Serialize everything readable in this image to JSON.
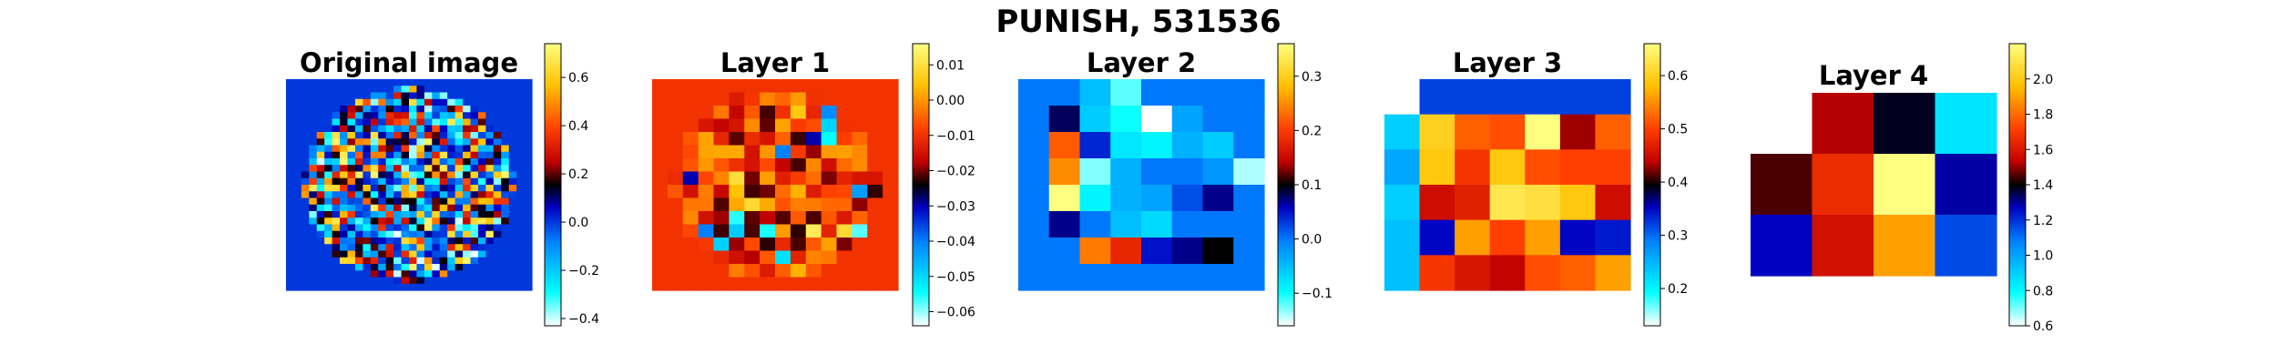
{
  "figure": {
    "title": "PUNISH, 531536"
  },
  "colormap": {
    "name": "flag-like (cyan-blue-black-red-yellow-white)",
    "stops": [
      [
        0.0,
        "#ffffff"
      ],
      [
        0.12,
        "#00ffff"
      ],
      [
        0.3,
        "#0080ff"
      ],
      [
        0.42,
        "#0000c0"
      ],
      [
        0.5,
        "#000000"
      ],
      [
        0.58,
        "#c00000"
      ],
      [
        0.7,
        "#ff4000"
      ],
      [
        0.85,
        "#ffc000"
      ],
      [
        1.0,
        "#ffff80"
      ]
    ]
  },
  "chart_data": [
    {
      "type": "heatmap",
      "title": "Original image",
      "grid": [
        32,
        32
      ],
      "mask": "circle",
      "vmin": -0.43,
      "vmax": 0.74,
      "background_value": 0.0,
      "colorbar_ticks": [
        -0.4,
        -0.2,
        0.0,
        0.2,
        0.4,
        0.6
      ],
      "colorbar_labels": [
        "−0.4",
        "−0.2",
        "0.0",
        "0.2",
        "0.4",
        "0.6"
      ],
      "seed": 11,
      "noise_low": -0.42,
      "noise_high": 0.72,
      "noise_bias": 0.35
    },
    {
      "type": "heatmap",
      "title": "Layer 1",
      "grid": [
        16,
        16
      ],
      "mask": "circle",
      "vmin": -0.064,
      "vmax": 0.016,
      "background_value": -0.01,
      "colorbar_ticks": [
        -0.06,
        -0.05,
        -0.04,
        -0.03,
        -0.02,
        -0.01,
        0.0,
        0.01
      ],
      "colorbar_labels": [
        "−0.06",
        "−0.05",
        "−0.04",
        "−0.03",
        "−0.02",
        "−0.01",
        "0.00",
        "0.01"
      ],
      "seed": 23,
      "noise_low": -0.06,
      "noise_high": 0.013,
      "noise_bias": 0.72
    },
    {
      "type": "heatmap",
      "title": "Layer 2",
      "grid": [
        8,
        8
      ],
      "mask": "circle",
      "vmin": -0.16,
      "vmax": 0.36,
      "background_value": 0.0,
      "colorbar_ticks": [
        -0.1,
        0.0,
        0.1,
        0.2,
        0.3
      ],
      "colorbar_labels": [
        "−0.1",
        "0.0",
        "0.1",
        "0.2",
        "0.3"
      ],
      "values": [
        [
          0.0,
          0.0,
          -0.05,
          -0.12,
          0.0,
          0.0,
          0.0,
          0.0
        ],
        [
          0.0,
          0.08,
          -0.06,
          -0.1,
          -0.16,
          -0.03,
          0.0,
          0.0
        ],
        [
          0.0,
          0.22,
          0.04,
          -0.08,
          -0.09,
          -0.04,
          -0.06,
          0.0
        ],
        [
          0.0,
          0.25,
          -0.13,
          -0.04,
          0.0,
          0.0,
          -0.02,
          -0.14
        ],
        [
          0.0,
          0.36,
          -0.09,
          -0.04,
          -0.03,
          0.02,
          0.07,
          0.0
        ],
        [
          0.0,
          0.07,
          0.0,
          -0.05,
          -0.07,
          0.0,
          0.0,
          0.0
        ],
        [
          0.0,
          0.0,
          0.24,
          0.18,
          0.05,
          0.07,
          0.1,
          0.0
        ],
        [
          0.0,
          0.0,
          0.0,
          0.0,
          0.0,
          0.0,
          0.0,
          0.0
        ]
      ]
    },
    {
      "type": "heatmap",
      "title": "Layer 3",
      "grid": [
        6,
        7
      ],
      "vmin": 0.13,
      "vmax": 0.66,
      "colorbar_ticks": [
        0.2,
        0.3,
        0.4,
        0.5,
        0.6
      ],
      "colorbar_labels": [
        "0.2",
        "0.3",
        "0.4",
        "0.5",
        "0.6"
      ],
      "values": [
        [
          null,
          0.32,
          0.32,
          0.32,
          0.32,
          0.32,
          0.32
        ],
        [
          0.23,
          0.6,
          0.52,
          0.51,
          0.66,
          0.43,
          0.52
        ],
        [
          0.26,
          0.59,
          0.49,
          0.59,
          0.51,
          0.5,
          0.5
        ],
        [
          0.23,
          0.45,
          0.47,
          0.63,
          0.62,
          0.59,
          0.45
        ],
        [
          0.24,
          0.35,
          0.56,
          0.5,
          0.56,
          0.35,
          0.34
        ],
        [
          0.24,
          0.49,
          0.46,
          0.44,
          0.51,
          0.52,
          0.56
        ]
      ]
    },
    {
      "type": "heatmap",
      "title": "Layer 4",
      "grid": [
        3,
        4
      ],
      "vmin": 0.6,
      "vmax": 2.2,
      "colorbar_ticks": [
        0.6,
        0.8,
        1.0,
        1.2,
        1.4,
        1.6,
        1.8,
        2.0
      ],
      "colorbar_labels": [
        "0.6",
        "0.8",
        "1.0",
        "1.2",
        "1.4",
        "1.6",
        "1.8",
        "2.0"
      ],
      "values": [
        [
          null,
          1.52,
          1.38,
          0.85
        ],
        [
          1.45,
          1.66,
          2.2,
          1.29
        ],
        [
          1.27,
          1.58,
          1.9,
          1.16
        ]
      ]
    }
  ]
}
